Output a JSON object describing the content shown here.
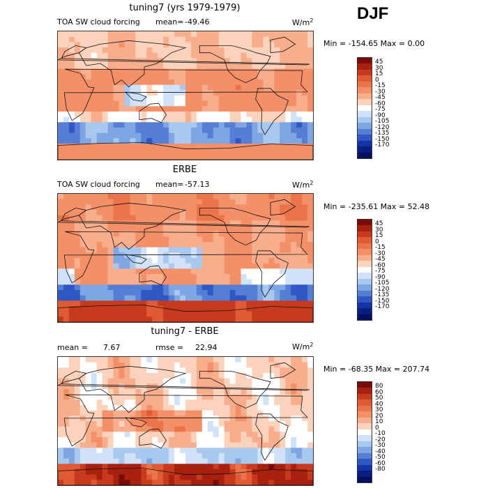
{
  "headline": "DJF",
  "panels": [
    {
      "title": "tuning7 (yrs 1979-1979)",
      "left_label": "TOA SW cloud forcing",
      "stat_label": "mean=",
      "stat_value": "-49.46",
      "extra_label": "",
      "extra_value": "",
      "units": "W/m",
      "units_exp": "2",
      "minmax": "Min = -154.65 Max =    0.00",
      "colorbar": {
        "levels": [
          "45",
          "30",
          "15",
          "0",
          "-15",
          "-30",
          "-45",
          "-60",
          "-75",
          "-90",
          "-105",
          "-120",
          "-135",
          "-150",
          "-170"
        ],
        "colors": [
          "#7a0b0b",
          "#a8200e",
          "#c83a1e",
          "#e05a34",
          "#ec744b",
          "#f49068",
          "#f8ae8d",
          "#fbd3bd",
          "#ffffff",
          "#cfe2f7",
          "#a9c8ef",
          "#7ea6e3",
          "#557fd4",
          "#2f58c4",
          "#1434a8",
          "#0a1f82",
          "#061060"
        ]
      },
      "field": "tuning"
    },
    {
      "title": "ERBE",
      "left_label": "TOA SW cloud forcing",
      "stat_label": "mean=",
      "stat_value": "-57.13",
      "extra_label": "",
      "extra_value": "",
      "units": "W/m",
      "units_exp": "2",
      "minmax": "Min = -235.61 Max =  52.48",
      "colorbar": {
        "levels": [
          "45",
          "30",
          "15",
          "0",
          "-15",
          "-30",
          "-45",
          "-60",
          "-75",
          "-90",
          "-105",
          "-120",
          "-135",
          "-150",
          "-170"
        ],
        "colors": [
          "#7a0b0b",
          "#a8200e",
          "#c83a1e",
          "#e05a34",
          "#ec744b",
          "#f49068",
          "#f8ae8d",
          "#fbd3bd",
          "#ffffff",
          "#cfe2f7",
          "#a9c8ef",
          "#7ea6e3",
          "#557fd4",
          "#2f58c4",
          "#1434a8",
          "#0a1f82",
          "#061060"
        ]
      },
      "field": "erbe"
    },
    {
      "title": "tuning7 - ERBE",
      "left_label": "mean =",
      "stat_label": "",
      "stat_value": "7.67",
      "extra_label": "rmse =",
      "extra_value": "22.94",
      "units": "W/m",
      "units_exp": "2",
      "minmax": "Min = -68.35 Max = 207.74",
      "colorbar": {
        "levels": [
          "80",
          "60",
          "50",
          "40",
          "30",
          "20",
          "10",
          "0",
          "-10",
          "-20",
          "-30",
          "-40",
          "-50",
          "-60",
          "-80"
        ],
        "colors": [
          "#7a0b0b",
          "#a8200e",
          "#c83a1e",
          "#e05a34",
          "#ec744b",
          "#f49068",
          "#f8ae8d",
          "#fbd3bd",
          "#ffffff",
          "#cfe2f7",
          "#a9c8ef",
          "#7ea6e3",
          "#557fd4",
          "#2f58c4",
          "#1434a8",
          "#0a1f82",
          "#061060"
        ]
      },
      "field": "diff"
    }
  ]
}
